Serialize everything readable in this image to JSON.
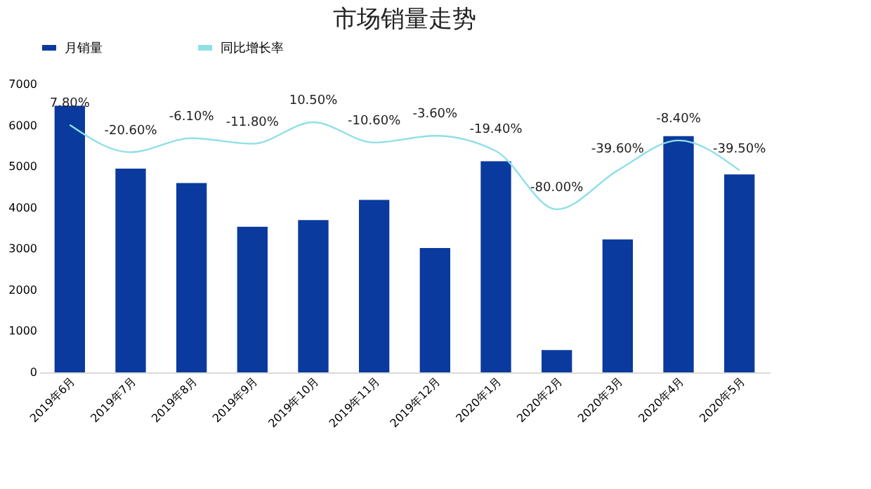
{
  "chart_data": {
    "type": "bar",
    "title": "市场销量走势",
    "categories": [
      "2019年6月",
      "2019年7月",
      "2019年8月",
      "2019年9月",
      "2019年10月",
      "2019年11月",
      "2019年12月",
      "2020年1月",
      "2020年2月",
      "2020年3月",
      "2020年4月",
      "2020年5月"
    ],
    "series": [
      {
        "name": "月销量",
        "color": "#0b3a9e",
        "values": [
          6480,
          4950,
          4600,
          3540,
          3700,
          4190,
          3020,
          5130,
          540,
          3230,
          5740,
          4810
        ]
      },
      {
        "name": "同比增长率",
        "type": "line",
        "axis": "y2",
        "color": "#8fe0e6",
        "values": [
          7.8,
          -20.6,
          -6.1,
          -11.8,
          10.5,
          -10.6,
          -3.6,
          -19.4,
          -80.0,
          -39.6,
          -8.4,
          -39.5
        ],
        "value_labels": [
          "7.80%",
          "-20.60%",
          "-6.10%",
          "-11.80%",
          "10.50%",
          "-10.60%",
          "-3.60%",
          "-19.40%",
          "-80.00%",
          "-39.60%",
          "-8.40%",
          "-39.50%"
        ]
      }
    ],
    "ylim": [
      0,
      7000
    ],
    "yticks": [
      0,
      1000,
      2000,
      3000,
      4000,
      5000,
      6000,
      7000
    ],
    "grid": false,
    "legend": "top",
    "marker": "none",
    "line_style": "solid"
  }
}
